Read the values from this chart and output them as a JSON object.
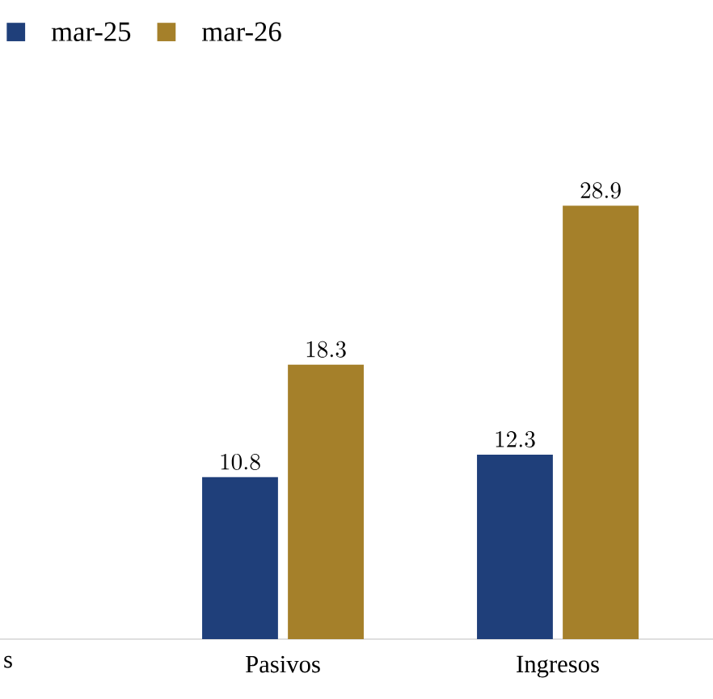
{
  "chart_data": {
    "type": "bar",
    "categories": [
      "s",
      "Pasivos",
      "Ingresos"
    ],
    "series": [
      {
        "name": "mar-25",
        "color": "#1f3f7a",
        "values": [
          null,
          10.8,
          12.3
        ]
      },
      {
        "name": "mar-26",
        "color": "#a5802a",
        "values": [
          null,
          18.3,
          28.9
        ]
      }
    ],
    "data_labels": true,
    "legend": "top left"
  }
}
